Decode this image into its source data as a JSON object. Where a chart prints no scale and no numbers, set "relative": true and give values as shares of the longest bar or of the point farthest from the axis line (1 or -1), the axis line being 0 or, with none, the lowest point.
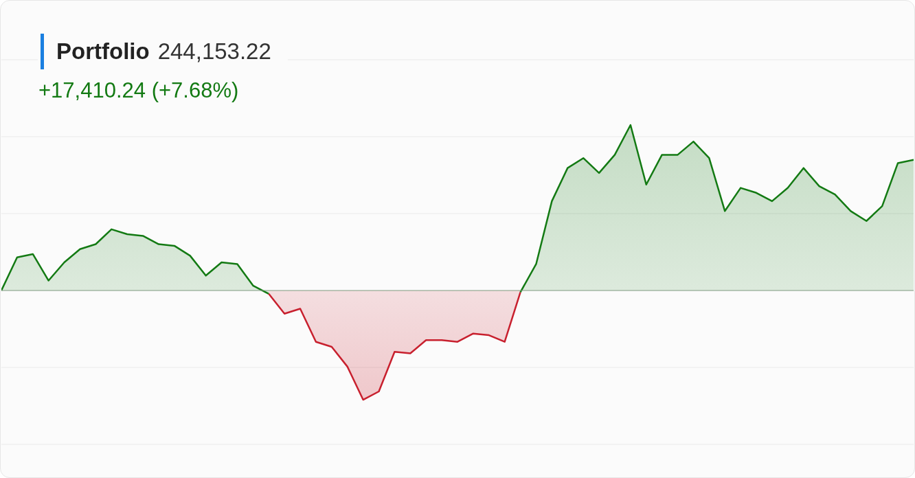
{
  "chart_data": {
    "type": "area",
    "title": "Portfolio",
    "subtitle": "244,153.22",
    "annotations": [
      "+17,410.24 (+7.68%)"
    ],
    "relative": true,
    "grid": "y",
    "tick_labels": false,
    "categories": [
      null,
      null,
      null,
      null,
      null,
      null,
      null,
      null,
      null,
      null,
      null,
      null,
      null,
      null,
      null,
      null,
      null,
      null,
      null,
      null,
      null,
      null,
      null,
      null,
      null,
      null,
      null,
      null,
      null,
      null,
      null,
      null,
      null,
      null,
      null,
      null,
      null,
      null,
      null,
      null,
      null,
      null,
      null,
      null,
      null,
      null,
      null,
      null,
      null,
      null,
      null,
      null,
      null,
      null,
      null,
      null,
      null,
      null,
      null
    ],
    "series": [
      {
        "color": "#137a13",
        "values": [
          0,
          0.2,
          0.22,
          0.06,
          0.17,
          0.25,
          0.28,
          0.37,
          0.34,
          0.33,
          0.28,
          0.27,
          0.21,
          0.09,
          0.17,
          0.16,
          0.03,
          -0.02,
          null,
          null,
          null,
          null,
          null,
          null,
          null,
          null,
          null,
          null,
          null,
          null,
          null,
          null,
          null,
          null,
          null,
          null,
          null,
          null,
          null,
          null,
          null,
          null,
          null,
          null,
          null,
          null,
          null,
          null,
          null,
          null,
          null,
          null,
          null,
          null,
          null,
          null,
          null,
          null,
          null
        ]
      },
      {
        "color": "#c8202e",
        "values": [
          null,
          null,
          null,
          null,
          null,
          null,
          null,
          null,
          null,
          null,
          null,
          null,
          null,
          null,
          null,
          null,
          null,
          -0.02,
          -0.14,
          -0.11,
          -0.31,
          -0.34,
          -0.46,
          -0.66,
          -0.61,
          -0.37,
          -0.38,
          -0.3,
          -0.3,
          -0.31,
          -0.26,
          -0.27,
          -0.31,
          -0.01,
          null,
          null,
          null,
          null,
          null,
          null,
          null,
          null,
          null,
          null,
          null,
          null,
          null,
          null,
          null,
          null,
          null,
          null,
          null,
          null,
          null,
          null,
          null,
          null,
          null
        ]
      },
      {
        "color": "#137a13",
        "values": [
          null,
          null,
          null,
          null,
          null,
          null,
          null,
          null,
          null,
          null,
          null,
          null,
          null,
          null,
          null,
          null,
          null,
          null,
          null,
          null,
          null,
          null,
          null,
          null,
          null,
          null,
          null,
          null,
          null,
          null,
          null,
          null,
          null,
          -0.01,
          0.16,
          0.54,
          0.74,
          0.8,
          0.71,
          0.82,
          1,
          0.64,
          0.82,
          0.82,
          0.9,
          0.8,
          0.48,
          0.62,
          0.59,
          0.54,
          0.62,
          0.74,
          0.63,
          0.58,
          0.48,
          0.42,
          0.51,
          0.77,
          0.79
        ]
      }
    ]
  }
}
